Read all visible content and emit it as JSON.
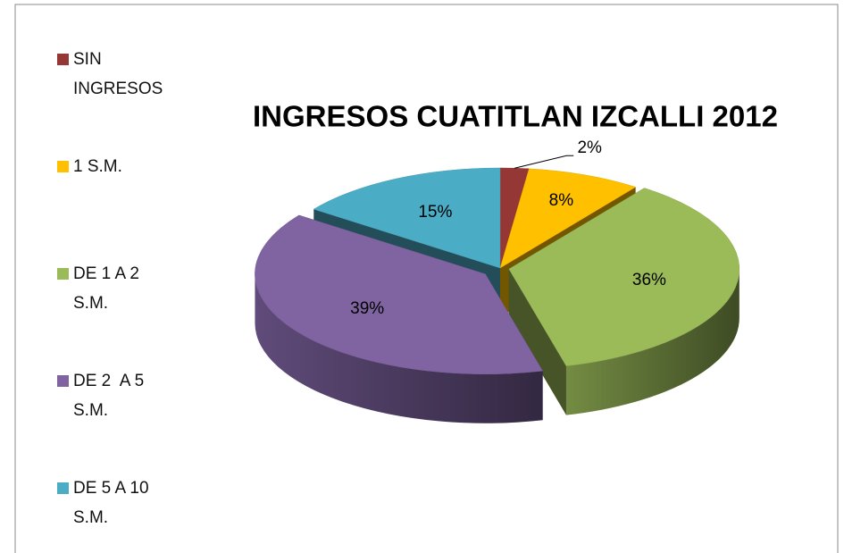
{
  "chart_data": {
    "type": "pie3d",
    "title": "INGRESOS CUATITLAN IZCALLI 2012",
    "categories": [
      "SIN INGRESOS",
      "1 S.M.",
      "DE 1 A 2 S.M.",
      "DE 2  A 5 S.M.",
      "DE 5 A 10 S.M."
    ],
    "values": [
      2,
      8,
      36,
      39,
      15
    ],
    "value_labels": [
      "2%",
      "8%",
      "36%",
      "39%",
      "15%"
    ],
    "colors": [
      "#953735",
      "#ffc000",
      "#9bbb59",
      "#8064a2",
      "#4bacc6"
    ],
    "legend": "left"
  }
}
